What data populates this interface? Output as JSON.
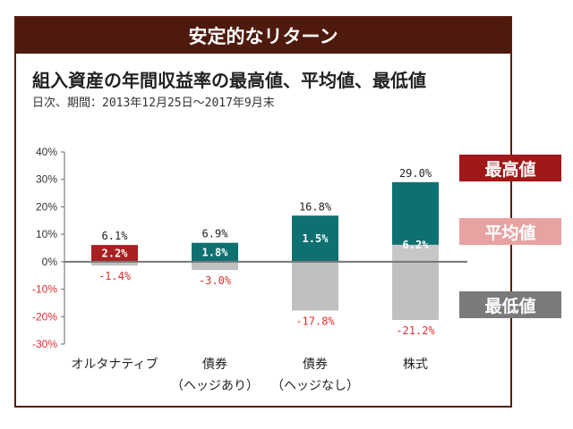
{
  "header": {
    "banner_title": "安定的なリターン"
  },
  "chart_data": {
    "type": "bar",
    "title": "組入資産の年間収益率の最高値、平均値、最低値",
    "subtitle": "日次、期間：2013年12月25日～2017年9月末",
    "categories": [
      [
        "オルタナティブ",
        ""
      ],
      [
        "債券",
        "（ヘッジあり）"
      ],
      [
        "債券",
        "（ヘッジなし）"
      ],
      [
        "株式",
        ""
      ]
    ],
    "ylim": [
      -30,
      40
    ],
    "yticks": [
      "40%",
      "30%",
      "20%",
      "10%",
      "0%",
      "-10%",
      "-20%",
      "-30%"
    ],
    "series": [
      {
        "name": "最高値",
        "values": [
          6.1,
          6.9,
          16.8,
          29.0
        ],
        "labels": [
          "6.1%",
          "6.9%",
          "16.8%",
          "29.0%"
        ],
        "color": "#a01818"
      },
      {
        "name": "平均値",
        "values": [
          2.2,
          1.8,
          1.5,
          6.2
        ],
        "labels": [
          "2.2%",
          "1.8%",
          "1.5%",
          "6.2%"
        ],
        "color": "#e8a2a2"
      },
      {
        "name": "最低値",
        "values": [
          -1.4,
          -3.0,
          -17.8,
          -21.2
        ],
        "labels": [
          "-1.4%",
          "-3.0%",
          "-17.8%",
          "-21.2%"
        ],
        "color": "#7a7a7a"
      }
    ],
    "bar_colors": [
      "#a82020",
      "#0e7070",
      "#0e7070",
      "#0e7070"
    ],
    "mean_fill": "#c7c7c7",
    "min_fill": "#c0c0c0",
    "min_label_color": "#e03030",
    "legend_position": "right"
  }
}
